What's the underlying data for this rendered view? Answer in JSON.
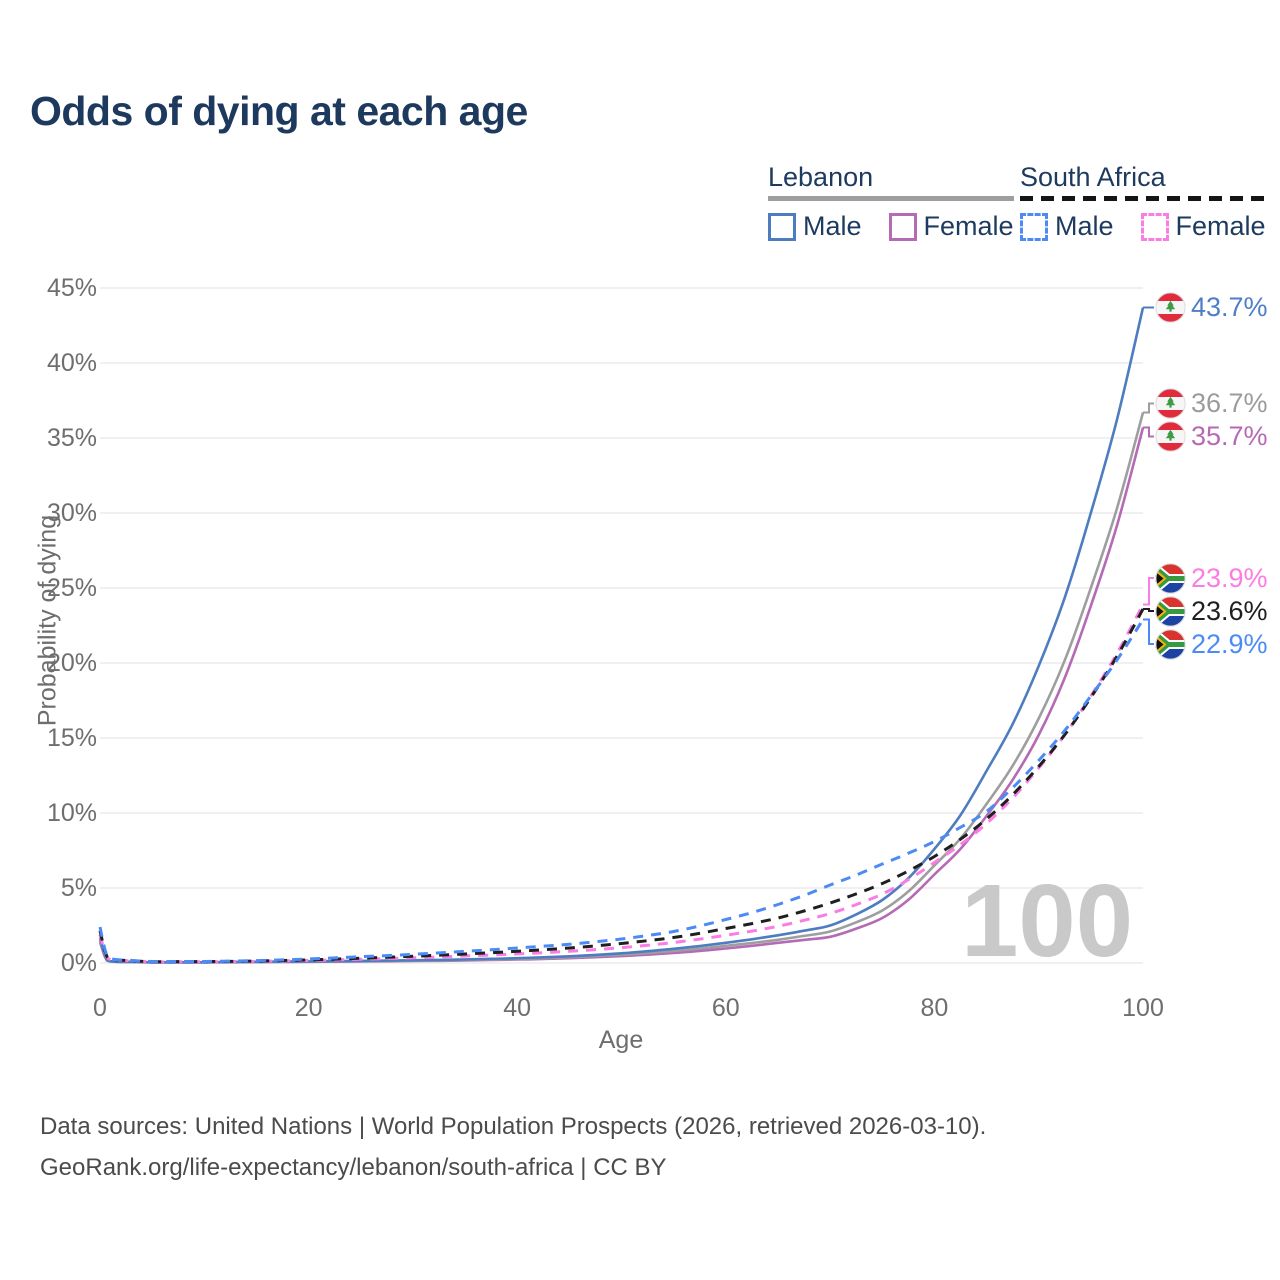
{
  "title": "Odds of dying at each age",
  "watermark": "100",
  "legend": {
    "groups": [
      {
        "name": "Lebanon",
        "line_style": "solid",
        "line_color": "#9e9e9e",
        "items": [
          {
            "label": "Male",
            "color": "#4d7dc0",
            "style": "solid"
          },
          {
            "label": "Female",
            "color": "#b46ab4",
            "style": "solid"
          }
        ]
      },
      {
        "name": "South Africa",
        "line_style": "dashed",
        "line_color": "#151515",
        "items": [
          {
            "label": "Male",
            "color": "#4c8bf5",
            "style": "dashed"
          },
          {
            "label": "Female",
            "color": "#fb7ce3",
            "style": "dashed"
          }
        ]
      }
    ]
  },
  "chart_data": {
    "type": "line",
    "title": "Odds of dying at each age",
    "xlabel": "Age",
    "ylabel": "Probability of dying",
    "xlim": [
      0,
      100
    ],
    "ylim": [
      0,
      45
    ],
    "x_ticks": [
      0,
      20,
      40,
      60,
      80,
      100
    ],
    "y_ticks": [
      0,
      5,
      10,
      15,
      20,
      25,
      30,
      35,
      40,
      45
    ],
    "y_tick_suffix": "%",
    "grid": "horizontal",
    "legend_position": "top-right",
    "x": [
      0,
      1,
      5,
      10,
      15,
      20,
      25,
      30,
      35,
      40,
      45,
      50,
      55,
      60,
      65,
      70,
      75,
      80,
      85,
      90,
      95,
      100
    ],
    "series": [
      {
        "name": "Lebanon Female",
        "country": "Lebanon",
        "sex": "Female",
        "color": "#b46ab4",
        "label_color": "#b46ab4",
        "dashed": false,
        "flag": "lebanon",
        "end_label": "35.7%",
        "values": [
          1.4,
          0.1,
          0.04,
          0.04,
          0.06,
          0.08,
          0.1,
          0.13,
          0.17,
          0.23,
          0.32,
          0.46,
          0.67,
          0.97,
          1.35,
          1.75,
          3.0,
          5.9,
          9.8,
          15.2,
          23.8,
          35.7
        ]
      },
      {
        "name": "Lebanon Both sexes",
        "country": "Lebanon",
        "sex": "Both",
        "color": "#9e9e9e",
        "label_color": "#9b9b9b",
        "dashed": false,
        "flag": "lebanon",
        "end_label": "36.7%",
        "values": [
          1.55,
          0.11,
          0.045,
          0.045,
          0.07,
          0.09,
          0.12,
          0.15,
          0.2,
          0.27,
          0.38,
          0.55,
          0.8,
          1.15,
          1.55,
          2.1,
          3.5,
          6.5,
          10.6,
          16.3,
          25.0,
          36.7
        ]
      },
      {
        "name": "Lebanon Male",
        "country": "Lebanon",
        "sex": "Male",
        "color": "#4d7dc0",
        "label_color": "#4d7ec6",
        "dashed": false,
        "flag": "lebanon",
        "end_label": "43.7%",
        "values": [
          1.7,
          0.12,
          0.05,
          0.05,
          0.08,
          0.11,
          0.14,
          0.18,
          0.24,
          0.32,
          0.45,
          0.65,
          0.95,
          1.35,
          1.85,
          2.5,
          4.2,
          7.6,
          12.8,
          19.8,
          30.0,
          43.7
        ]
      },
      {
        "name": "South Africa Female",
        "country": "South Africa",
        "sex": "Female",
        "color": "#fb7ce3",
        "label_color": "#fb7ce3",
        "dashed": true,
        "flag": "south-africa",
        "end_label": "23.9%",
        "values": [
          1.9,
          0.24,
          0.08,
          0.08,
          0.11,
          0.17,
          0.25,
          0.35,
          0.47,
          0.61,
          0.78,
          1.02,
          1.37,
          1.85,
          2.45,
          3.3,
          4.6,
          6.7,
          9.3,
          13.0,
          17.8,
          23.9
        ]
      },
      {
        "name": "South Africa Both sexes",
        "country": "South Africa",
        "sex": "Both",
        "color": "#1f1f1f",
        "label_color": "#1f1f1f",
        "dashed": true,
        "flag": "south-africa",
        "end_label": "23.6%",
        "values": [
          2.15,
          0.27,
          0.09,
          0.09,
          0.13,
          0.21,
          0.32,
          0.45,
          0.6,
          0.78,
          1.0,
          1.3,
          1.7,
          2.3,
          3.0,
          4.0,
          5.3,
          7.1,
          9.6,
          13.1,
          17.7,
          23.6
        ]
      },
      {
        "name": "South Africa Male",
        "country": "South Africa",
        "sex": "Male",
        "color": "#4c8bf5",
        "label_color": "#4c8bf5",
        "dashed": true,
        "flag": "south-africa",
        "end_label": "22.9%",
        "values": [
          2.4,
          0.3,
          0.1,
          0.1,
          0.16,
          0.27,
          0.42,
          0.58,
          0.78,
          1.0,
          1.25,
          1.6,
          2.1,
          2.9,
          3.9,
          5.2,
          6.6,
          8.1,
          10.1,
          13.5,
          17.8,
          22.9
        ]
      }
    ]
  },
  "footer": {
    "line1": "Data sources: United Nations | World Population Prospects (2026, retrieved 2026-03-10).",
    "line2": "GeoRank.org/life-expectancy/lebanon/south-africa | CC BY"
  }
}
